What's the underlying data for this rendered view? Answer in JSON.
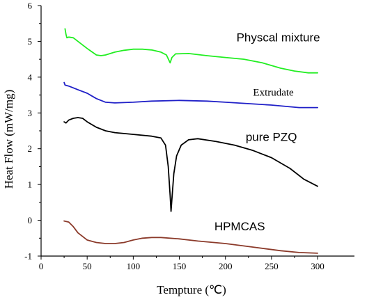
{
  "chart_data": {
    "type": "line",
    "title": "",
    "xlabel": "Tempture (℃)",
    "ylabel": "Heat Flow (mW/mg)",
    "xlim": [
      0,
      340
    ],
    "ylim": [
      -1,
      6
    ],
    "xticks": [
      0,
      50,
      100,
      150,
      200,
      250,
      300
    ],
    "yticks": [
      -1,
      0,
      1,
      2,
      3,
      4,
      5,
      6
    ],
    "grid": false,
    "series": [
      {
        "name": "Physcal mixture",
        "color": "#22ee22",
        "label_font": "sans",
        "label_at": [
          212,
          5.0
        ],
        "points": [
          [
            26,
            5.35
          ],
          [
            27,
            5.2
          ],
          [
            28,
            5.1
          ],
          [
            30,
            5.12
          ],
          [
            35,
            5.1
          ],
          [
            40,
            5.0
          ],
          [
            50,
            4.8
          ],
          [
            60,
            4.62
          ],
          [
            65,
            4.6
          ],
          [
            70,
            4.62
          ],
          [
            80,
            4.7
          ],
          [
            90,
            4.75
          ],
          [
            100,
            4.78
          ],
          [
            110,
            4.78
          ],
          [
            120,
            4.76
          ],
          [
            130,
            4.7
          ],
          [
            136,
            4.62
          ],
          [
            140,
            4.4
          ],
          [
            142,
            4.55
          ],
          [
            146,
            4.65
          ],
          [
            160,
            4.66
          ],
          [
            180,
            4.6
          ],
          [
            200,
            4.55
          ],
          [
            220,
            4.5
          ],
          [
            240,
            4.4
          ],
          [
            260,
            4.25
          ],
          [
            275,
            4.17
          ],
          [
            290,
            4.12
          ],
          [
            300,
            4.12
          ]
        ]
      },
      {
        "name": "Extrudate",
        "color": "#2020c8",
        "label_font": "serif",
        "label_at": [
          230,
          3.48
        ],
        "points": [
          [
            25,
            3.85
          ],
          [
            26,
            3.78
          ],
          [
            30,
            3.75
          ],
          [
            40,
            3.65
          ],
          [
            50,
            3.55
          ],
          [
            60,
            3.4
          ],
          [
            70,
            3.3
          ],
          [
            80,
            3.28
          ],
          [
            100,
            3.3
          ],
          [
            120,
            3.33
          ],
          [
            150,
            3.35
          ],
          [
            180,
            3.33
          ],
          [
            200,
            3.3
          ],
          [
            250,
            3.22
          ],
          [
            280,
            3.15
          ],
          [
            300,
            3.15
          ]
        ]
      },
      {
        "name": "pure PZQ",
        "color": "#000000",
        "label_font": "sans",
        "label_at": [
          222,
          2.22
        ],
        "points": [
          [
            25,
            2.75
          ],
          [
            27,
            2.72
          ],
          [
            30,
            2.8
          ],
          [
            35,
            2.85
          ],
          [
            40,
            2.87
          ],
          [
            45,
            2.85
          ],
          [
            50,
            2.75
          ],
          [
            60,
            2.6
          ],
          [
            70,
            2.5
          ],
          [
            80,
            2.45
          ],
          [
            100,
            2.4
          ],
          [
            120,
            2.35
          ],
          [
            130,
            2.3
          ],
          [
            135,
            2.1
          ],
          [
            138,
            1.5
          ],
          [
            140,
            0.7
          ],
          [
            141,
            0.25
          ],
          [
            142,
            0.6
          ],
          [
            144,
            1.3
          ],
          [
            147,
            1.8
          ],
          [
            152,
            2.1
          ],
          [
            160,
            2.25
          ],
          [
            170,
            2.28
          ],
          [
            190,
            2.2
          ],
          [
            210,
            2.1
          ],
          [
            230,
            1.95
          ],
          [
            250,
            1.75
          ],
          [
            270,
            1.45
          ],
          [
            285,
            1.15
          ],
          [
            300,
            0.95
          ]
        ]
      },
      {
        "name": "HPMCAS",
        "color": "#8b3a2a",
        "label_font": "sans",
        "label_at": [
          188,
          -0.28
        ],
        "points": [
          [
            25,
            -0.02
          ],
          [
            30,
            -0.05
          ],
          [
            35,
            -0.18
          ],
          [
            40,
            -0.35
          ],
          [
            50,
            -0.55
          ],
          [
            60,
            -0.62
          ],
          [
            70,
            -0.65
          ],
          [
            80,
            -0.65
          ],
          [
            90,
            -0.62
          ],
          [
            100,
            -0.55
          ],
          [
            110,
            -0.5
          ],
          [
            120,
            -0.48
          ],
          [
            130,
            -0.48
          ],
          [
            150,
            -0.52
          ],
          [
            170,
            -0.58
          ],
          [
            200,
            -0.65
          ],
          [
            230,
            -0.75
          ],
          [
            260,
            -0.85
          ],
          [
            280,
            -0.9
          ],
          [
            300,
            -0.92
          ]
        ]
      }
    ]
  }
}
